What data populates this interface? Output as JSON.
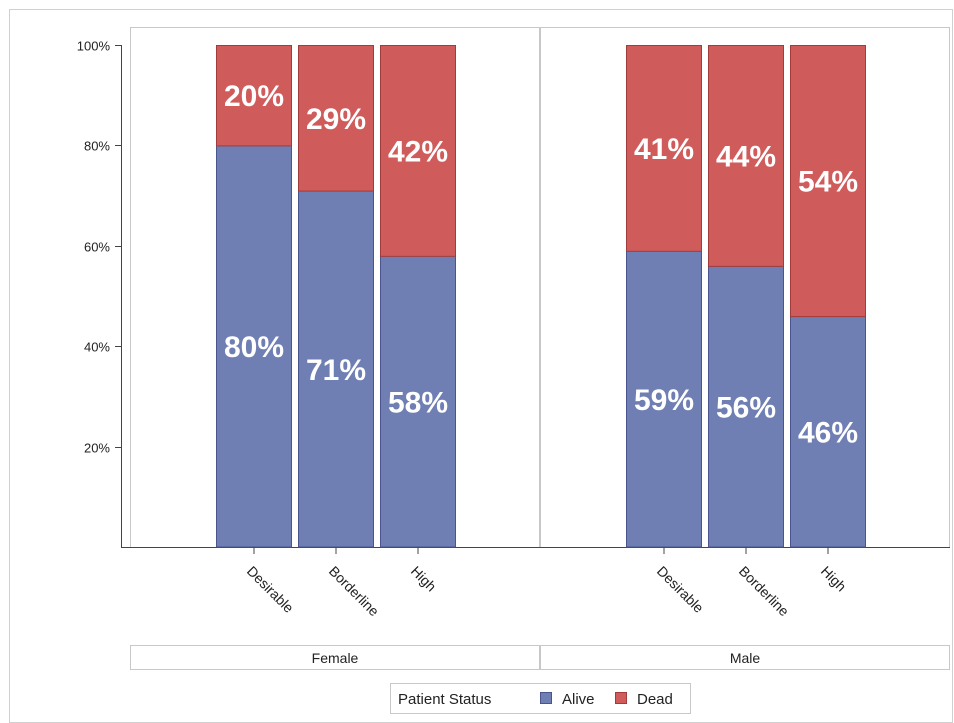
{
  "chart_data": {
    "type": "bar",
    "stacked": true,
    "percent_stacked": true,
    "panels": [
      {
        "name": "Female",
        "categories": [
          "Desirable",
          "Borderline",
          "High"
        ],
        "series": [
          {
            "name": "Alive",
            "values": [
              80,
              71,
              58
            ],
            "labels": [
              "80%",
              "71%",
              "58%"
            ]
          },
          {
            "name": "Dead",
            "values": [
              20,
              29,
              42
            ],
            "labels": [
              "20%",
              "29%",
              "42%"
            ]
          }
        ]
      },
      {
        "name": "Male",
        "categories": [
          "Desirable",
          "Borderline",
          "High"
        ],
        "series": [
          {
            "name": "Alive",
            "values": [
              59,
              56,
              46
            ],
            "labels": [
              "59%",
              "56%",
              "46%"
            ]
          },
          {
            "name": "Dead",
            "values": [
              41,
              44,
              54
            ],
            "labels": [
              "41%",
              "44%",
              "54%"
            ]
          }
        ]
      }
    ],
    "yaxis": {
      "ylim": [
        0,
        100
      ],
      "ticks": [
        20,
        40,
        60,
        80,
        100
      ],
      "tick_labels": [
        "20%",
        "40%",
        "60%",
        "80%",
        "100%"
      ]
    },
    "legend": {
      "title": "Patient Status",
      "placement": "bottom",
      "entries": [
        "Alive",
        "Dead"
      ]
    },
    "colors": {
      "Alive": "#6f7eb3",
      "Dead": "#d05b5b",
      "Alive_edge": "#4a5590",
      "Dead_edge": "#a23b3b"
    },
    "grid": false
  }
}
